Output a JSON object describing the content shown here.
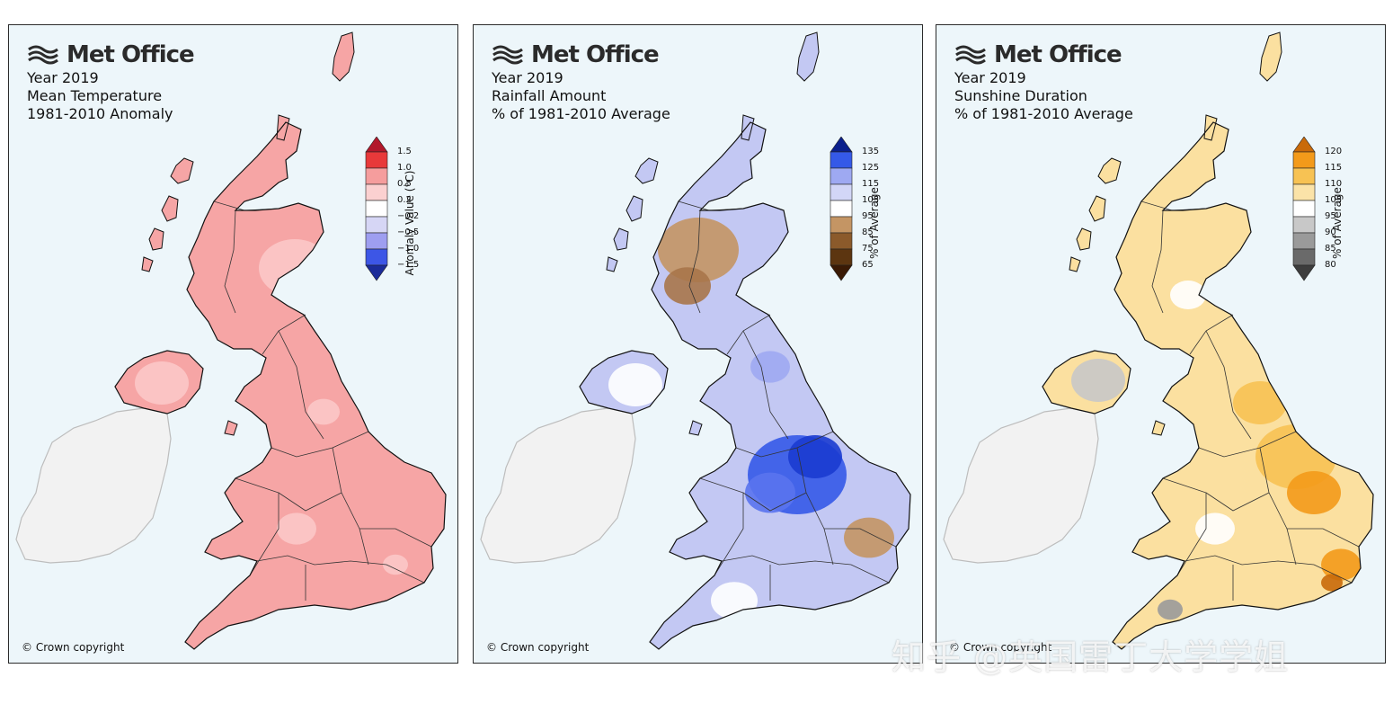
{
  "logo": {
    "brand": "Met Office"
  },
  "copyright": "© Crown copyright",
  "watermark": "知乎 @英国雷丁大学学姐",
  "panels": [
    {
      "title_lines": [
        "Year 2019",
        "Mean Temperature",
        "1981-2010 Anomaly"
      ],
      "colorbar": {
        "label": "Anomaly Value (°C)",
        "ticks": [
          "1.5",
          "1.0",
          "0.5",
          "0.2",
          "−0.2",
          "−0.5",
          "−1.0",
          "−1.5"
        ],
        "colors_top_to_bottom": [
          "#b2182b",
          "#e8393a",
          "#f59d9d",
          "#fbd0d0",
          "#ffffff",
          "#d6d6f5",
          "#9e9ef0",
          "#3d56e6",
          "#1b2b99"
        ]
      },
      "fill": "#f6a5a5",
      "fill_light": "#fcc8c8"
    },
    {
      "title_lines": [
        "Year 2019",
        "Rainfall Amount",
        "% of 1981-2010 Average"
      ],
      "colorbar": {
        "label": "% of Average",
        "ticks": [
          "135",
          "125",
          "115",
          "105",
          "95",
          "85",
          "75",
          "65"
        ],
        "colors_top_to_bottom": [
          "#0b1f8c",
          "#3559e8",
          "#9ea9f2",
          "#d2d6f7",
          "#ffffff",
          "#c49564",
          "#8b5a2b",
          "#5c3510",
          "#3a1a05"
        ]
      },
      "fill": "#c3c8f3",
      "fill_light": "#e6e8fa"
    },
    {
      "title_lines": [
        "Year 2019",
        "Sunshine Duration",
        "% of 1981-2010 Average"
      ],
      "colorbar": {
        "label": "% of Average",
        "ticks": [
          "120",
          "115",
          "110",
          "105",
          "95",
          "90",
          "85",
          "80"
        ],
        "colors_top_to_bottom": [
          "#c96a0a",
          "#f39a1a",
          "#f7c253",
          "#fbe3a8",
          "#ffffff",
          "#c8c8c8",
          "#9a9a9a",
          "#6a6a6a",
          "#3d3d3d"
        ]
      },
      "fill": "#fbe0a0",
      "fill_light": "#ffffff"
    }
  ]
}
